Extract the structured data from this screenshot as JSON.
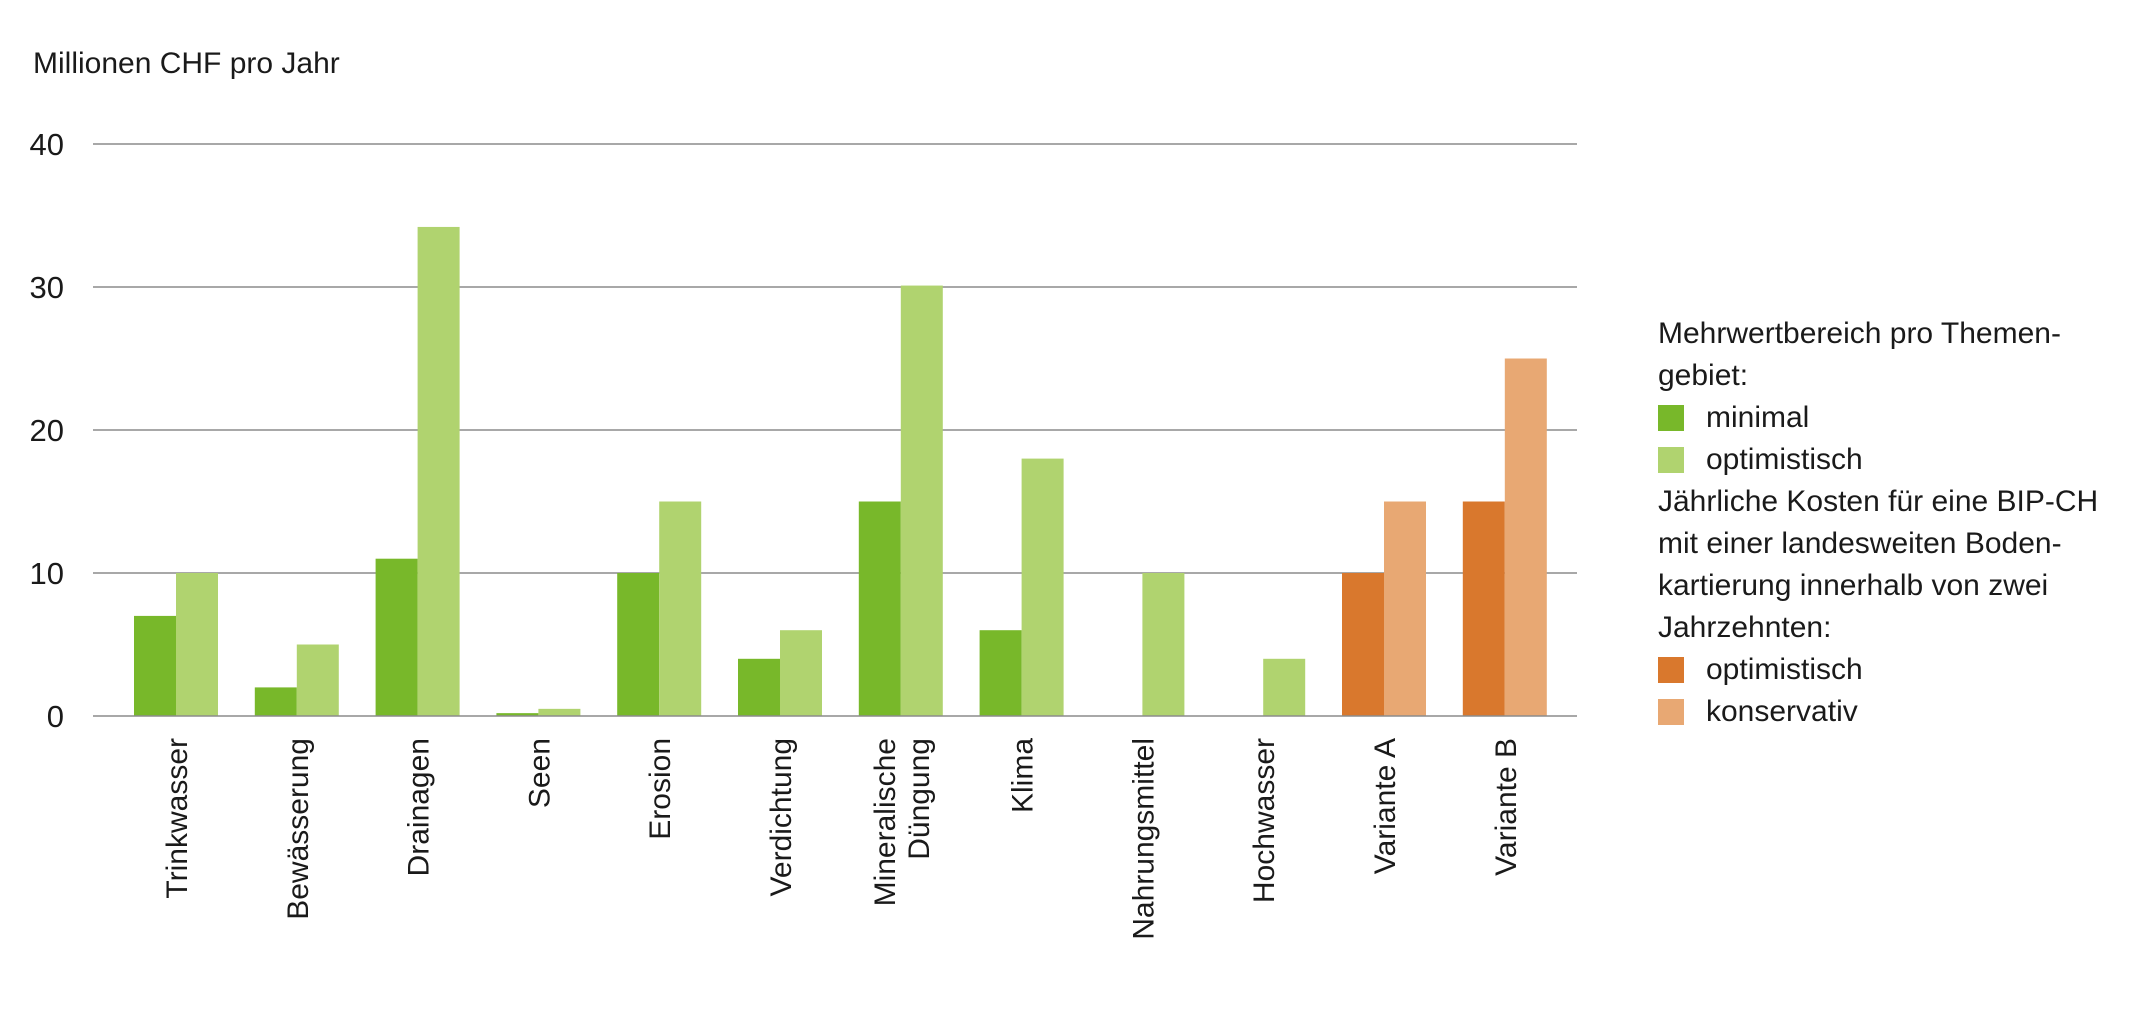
{
  "chart_data": {
    "type": "bar",
    "ylabel": "Millionen CHF pro Jahr",
    "ylim": [
      0,
      40
    ],
    "yticks": [
      0,
      10,
      20,
      30,
      40
    ],
    "grid": true,
    "legend_position": "right",
    "categories": [
      [
        "Trinkwasser"
      ],
      [
        "Bewässerung"
      ],
      [
        "Drainagen"
      ],
      [
        "Seen"
      ],
      [
        "Erosion"
      ],
      [
        "Verdichtung"
      ],
      [
        "Mineralische",
        "Düngung"
      ],
      [
        "Klima"
      ],
      [
        "Nahrungsmittel"
      ],
      [
        "Hochwasser"
      ],
      [
        "Variante A"
      ],
      [
        "Variante B"
      ]
    ],
    "bars": [
      {
        "category": 0,
        "value": 7,
        "color": "#78b82a"
      },
      {
        "category": 0,
        "value": 10,
        "color": "#b0d36f"
      },
      {
        "category": 1,
        "value": 2,
        "color": "#78b82a"
      },
      {
        "category": 1,
        "value": 5,
        "color": "#b0d36f"
      },
      {
        "category": 2,
        "value": 11,
        "color": "#78b82a"
      },
      {
        "category": 2,
        "value": 34.2,
        "color": "#b0d36f"
      },
      {
        "category": 3,
        "value": 0.2,
        "color": "#78b82a"
      },
      {
        "category": 3,
        "value": 0.5,
        "color": "#b0d36f"
      },
      {
        "category": 4,
        "value": 10,
        "color": "#78b82a"
      },
      {
        "category": 4,
        "value": 15,
        "color": "#b0d36f"
      },
      {
        "category": 5,
        "value": 4,
        "color": "#78b82a"
      },
      {
        "category": 5,
        "value": 6,
        "color": "#b0d36f"
      },
      {
        "category": 6,
        "value": 15,
        "color": "#78b82a"
      },
      {
        "category": 6,
        "value": 30.1,
        "color": "#b0d36f"
      },
      {
        "category": 7,
        "value": 6,
        "color": "#78b82a"
      },
      {
        "category": 7,
        "value": 18,
        "color": "#b0d36f"
      },
      {
        "category": 8,
        "value": null,
        "color": "#78b82a"
      },
      {
        "category": 8,
        "value": 10,
        "color": "#b0d36f"
      },
      {
        "category": 9,
        "value": null,
        "color": "#78b82a"
      },
      {
        "category": 9,
        "value": 4,
        "color": "#b0d36f"
      },
      {
        "category": 10,
        "value": 10,
        "color": "#d9782d"
      },
      {
        "category": 10,
        "value": 15,
        "color": "#e8a873"
      },
      {
        "category": 11,
        "value": 15,
        "color": "#d9782d"
      },
      {
        "category": 11,
        "value": 25,
        "color": "#e8a873"
      }
    ],
    "series": [
      {
        "name": "minimal",
        "group": "Mehrwertbereich pro Themengebiet",
        "color": "#78b82a"
      },
      {
        "name": "optimistisch",
        "group": "Mehrwertbereich pro Themengebiet",
        "color": "#b0d36f"
      },
      {
        "name": "optimistisch",
        "group": "Jährliche Kosten für eine BIP-CH mit einer landesweiten Bodenkartierung innerhalb von zwei Jahrzehnten",
        "color": "#d9782d"
      },
      {
        "name": "konservativ",
        "group": "Jährliche Kosten für eine BIP-CH mit einer landesweiten Bodenkartierung innerhalb von zwei Jahrzehnten",
        "color": "#e8a873"
      }
    ]
  },
  "legend": {
    "heading_1": "Mehrwertbereich pro Themen-gebiet:",
    "item_1": "minimal",
    "item_2": "optimistisch",
    "heading_2": "Jährliche Kosten für eine BIP-CH mit einer landesweiten Boden-kartierung innerhalb von zwei Jahrzehnten:",
    "item_3": "optimistisch",
    "item_4": "konservativ",
    "color_1": "#78b82a",
    "color_2": "#b0d36f",
    "color_3": "#d9782d",
    "color_4": "#e8a873"
  },
  "colors": {
    "grid": "#8c8c8c",
    "axis": "#8c8c8c",
    "text": "#1a1a1a"
  }
}
